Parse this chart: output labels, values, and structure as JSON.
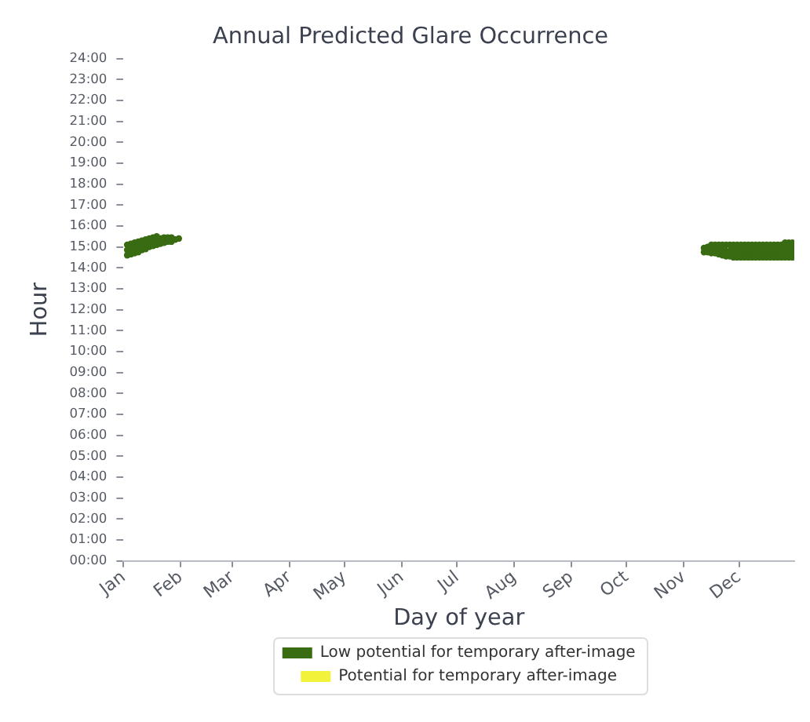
{
  "chart_data": {
    "type": "scatter",
    "title": "Annual Predicted Glare Occurrence",
    "xlabel": "Day of year",
    "ylabel": "Hour",
    "xlim": [
      "--01-01",
      "--12-31"
    ],
    "xticks": [
      {
        "value": "--01-01",
        "label": "Jan"
      },
      {
        "value": "--02-01",
        "label": "Feb"
      },
      {
        "value": "--03-01",
        "label": "Mar"
      },
      {
        "value": "--04-01",
        "label": "Apr"
      },
      {
        "value": "--05-01",
        "label": "May"
      },
      {
        "value": "--06-01",
        "label": "Jun"
      },
      {
        "value": "--07-01",
        "label": "Jul"
      },
      {
        "value": "--08-01",
        "label": "Aug"
      },
      {
        "value": "--09-01",
        "label": "Sep"
      },
      {
        "value": "--10-01",
        "label": "Oct"
      },
      {
        "value": "--11-01",
        "label": "Nov"
      },
      {
        "value": "--12-01",
        "label": "Dec"
      }
    ],
    "ylim": [
      0,
      24
    ],
    "yticks": [
      {
        "value": 0,
        "label": "00:00"
      },
      {
        "value": 1,
        "label": "01:00"
      },
      {
        "value": 2,
        "label": "02:00"
      },
      {
        "value": 3,
        "label": "03:00"
      },
      {
        "value": 4,
        "label": "04:00"
      },
      {
        "value": 5,
        "label": "05:00"
      },
      {
        "value": 6,
        "label": "06:00"
      },
      {
        "value": 7,
        "label": "07:00"
      },
      {
        "value": 8,
        "label": "08:00"
      },
      {
        "value": 9,
        "label": "09:00"
      },
      {
        "value": 10,
        "label": "10:00"
      },
      {
        "value": 11,
        "label": "11:00"
      },
      {
        "value": 12,
        "label": "12:00"
      },
      {
        "value": 13,
        "label": "13:00"
      },
      {
        "value": 14,
        "label": "14:00"
      },
      {
        "value": 15,
        "label": "15:00"
      },
      {
        "value": 16,
        "label": "16:00"
      },
      {
        "value": 17,
        "label": "17:00"
      },
      {
        "value": 18,
        "label": "18:00"
      },
      {
        "value": 19,
        "label": "19:00"
      },
      {
        "value": 20,
        "label": "20:00"
      },
      {
        "value": 21,
        "label": "21:00"
      },
      {
        "value": 22,
        "label": "22:00"
      },
      {
        "value": 23,
        "label": "23:00"
      },
      {
        "value": 24,
        "label": "24:00"
      }
    ],
    "grid": false,
    "legend": "bottom",
    "marker": "circle",
    "series": [
      {
        "name": "Low potential for temporary after-image",
        "color": "#386b12",
        "x": [
          "--01-03",
          "--01-03",
          "--01-03",
          "--01-05",
          "--01-05",
          "--01-05",
          "--01-07",
          "--01-07",
          "--01-07",
          "--01-09",
          "--01-09",
          "--01-09",
          "--01-11",
          "--01-11",
          "--01-11",
          "--01-13",
          "--01-13",
          "--01-13",
          "--01-15",
          "--01-15",
          "--01-15",
          "--01-17",
          "--01-17",
          "--01-17",
          "--01-19",
          "--01-19",
          "--01-19",
          "--01-21",
          "--01-21",
          "--01-23",
          "--01-23",
          "--01-25",
          "--01-25",
          "--01-27",
          "--01-27",
          "--01-29",
          "--01-31",
          "--11-12",
          "--11-12",
          "--11-14",
          "--11-14",
          "--11-16",
          "--11-16",
          "--11-16",
          "--11-18",
          "--11-18",
          "--11-18",
          "--11-20",
          "--11-20",
          "--11-20",
          "--11-22",
          "--11-22",
          "--11-22",
          "--11-24",
          "--11-24",
          "--11-24",
          "--11-26",
          "--11-26",
          "--11-26",
          "--11-28",
          "--11-28",
          "--11-28",
          "--11-28",
          "--11-30",
          "--11-30",
          "--11-30",
          "--11-30",
          "--12-02",
          "--12-02",
          "--12-02",
          "--12-02",
          "--12-04",
          "--12-04",
          "--12-04",
          "--12-04",
          "--12-06",
          "--12-06",
          "--12-06",
          "--12-06",
          "--12-08",
          "--12-08",
          "--12-08",
          "--12-08",
          "--12-10",
          "--12-10",
          "--12-10",
          "--12-10",
          "--12-12",
          "--12-12",
          "--12-12",
          "--12-12",
          "--12-14",
          "--12-14",
          "--12-14",
          "--12-14",
          "--12-16",
          "--12-16",
          "--12-16",
          "--12-16",
          "--12-18",
          "--12-18",
          "--12-18",
          "--12-18",
          "--12-20",
          "--12-20",
          "--12-20",
          "--12-20",
          "--12-22",
          "--12-22",
          "--12-22",
          "--12-22",
          "--12-24",
          "--12-24",
          "--12-24",
          "--12-24",
          "--12-26",
          "--12-26",
          "--12-26",
          "--12-26",
          "--12-28",
          "--12-28",
          "--12-28",
          "--12-28",
          "--12-30",
          "--12-30",
          "--12-30",
          "--12-30"
        ],
        "values": [
          14.6,
          14.85,
          15.1,
          14.65,
          14.9,
          15.15,
          14.7,
          14.95,
          15.2,
          14.75,
          15.0,
          15.25,
          14.85,
          15.1,
          15.3,
          14.9,
          15.15,
          15.35,
          15.0,
          15.2,
          15.4,
          15.05,
          15.25,
          15.45,
          15.1,
          15.3,
          15.5,
          15.15,
          15.4,
          15.2,
          15.45,
          15.25,
          15.45,
          15.25,
          15.45,
          15.35,
          15.4,
          14.75,
          14.95,
          14.75,
          15.0,
          14.7,
          14.9,
          15.1,
          14.7,
          14.9,
          15.1,
          14.65,
          14.85,
          15.1,
          14.6,
          14.85,
          15.1,
          14.55,
          14.8,
          15.1,
          14.55,
          14.8,
          15.1,
          14.5,
          14.7,
          14.9,
          15.1,
          14.5,
          14.7,
          14.9,
          15.1,
          14.5,
          14.7,
          14.9,
          15.1,
          14.5,
          14.7,
          14.9,
          15.1,
          14.5,
          14.7,
          14.9,
          15.1,
          14.5,
          14.7,
          14.9,
          15.1,
          14.5,
          14.7,
          14.9,
          15.1,
          14.5,
          14.7,
          14.9,
          15.1,
          14.5,
          14.7,
          14.9,
          15.1,
          14.5,
          14.7,
          14.9,
          15.1,
          14.5,
          14.7,
          14.9,
          15.1,
          14.5,
          14.7,
          14.9,
          15.1,
          14.5,
          14.7,
          14.9,
          15.1,
          14.5,
          14.7,
          14.9,
          15.1,
          14.5,
          14.7,
          14.95,
          15.2,
          14.5,
          14.7,
          14.95,
          15.2,
          14.5,
          14.7,
          14.95,
          15.2
        ]
      },
      {
        "name": "Potential for temporary after-image",
        "color": "#f2f23a"
      }
    ]
  }
}
